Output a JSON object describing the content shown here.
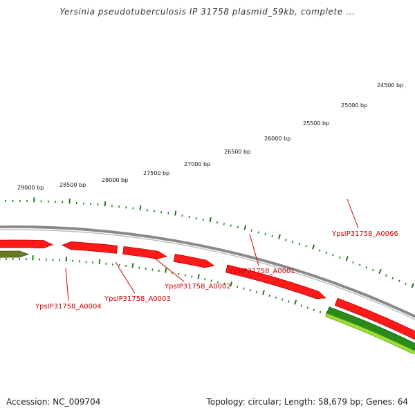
{
  "title": "Yersinia pseudotuberculosis IP 31758 plasmid_59kb, complete ...",
  "footer": {
    "accession": "Accession: NC_009704",
    "summary": "Topology: circular; Length: 58,679 bp; Genes: 64"
  },
  "colors": {
    "forward_gene": "#ff1a1a",
    "reverse_gene": "#2a8a1a",
    "reverse_gene_light": "#99e033",
    "backbone": "#8a8a8a",
    "tick": "#1a7a1a",
    "label": "#cc0000"
  },
  "tick_labels": [
    "24500 bp",
    "25000 bp",
    "25500 bp",
    "26000 bp",
    "26500 bp",
    "27000 bp",
    "27500 bp",
    "28000 bp",
    "28500 bp",
    "29000 bp"
  ],
  "gene_labels": [
    "YpsIP31758_A0066",
    "YpsIP31758_A0001",
    "YpsIP31758_A0002",
    "YpsIP31758_A0003",
    "YpsIP31758_A0004"
  ]
}
